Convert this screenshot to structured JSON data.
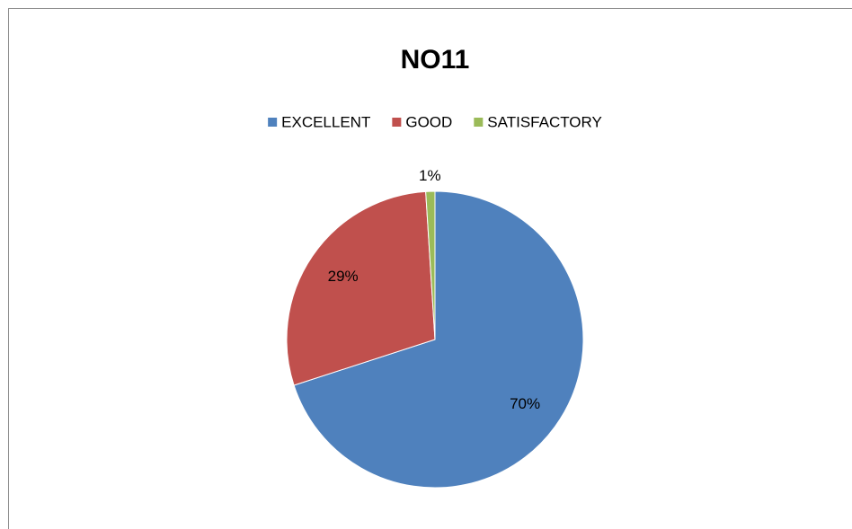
{
  "chart_data": {
    "type": "pie",
    "title": "NO11",
    "categories": [
      "EXCELLENT",
      "GOOD",
      "SATISFACTORY"
    ],
    "values": [
      70,
      29,
      1
    ],
    "value_labels": [
      "70%",
      "29%",
      "1%"
    ],
    "colors": [
      "#4f81bd",
      "#c0504d",
      "#9bbb59"
    ],
    "legend": "top"
  }
}
